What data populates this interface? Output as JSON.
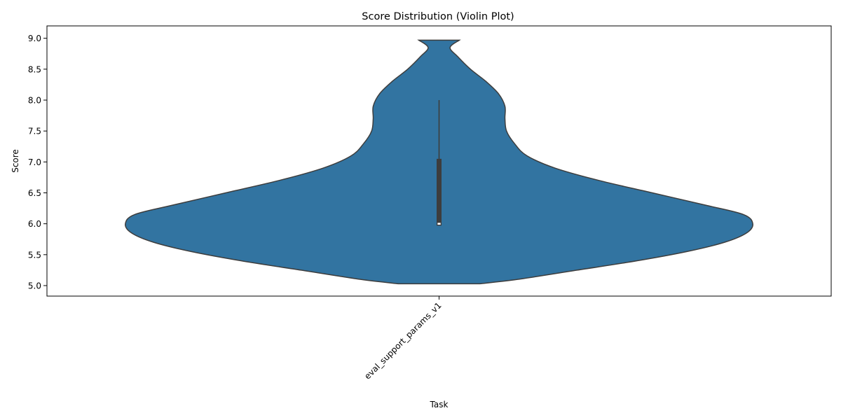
{
  "chart_data": {
    "type": "violin",
    "title": "Score Distribution (Violin Plot)",
    "xlabel": "Task",
    "ylabel": "Score",
    "ylim": [
      4.83,
      9.2
    ],
    "yticks": [
      5.0,
      5.5,
      6.0,
      6.5,
      7.0,
      7.5,
      8.0,
      8.5,
      9.0
    ],
    "ytick_labels": [
      "5.0",
      "5.5",
      "6.0",
      "6.5",
      "7.0",
      "7.5",
      "8.0",
      "8.5",
      "9.0"
    ],
    "categories": [
      "eval_support_params_v1"
    ],
    "violin_color": "#3274a1",
    "edge_color": "#3d3d3d",
    "density_profile": [
      [
        5.03,
        0.13
      ],
      [
        5.1,
        0.25
      ],
      [
        5.25,
        0.44
      ],
      [
        5.4,
        0.63
      ],
      [
        5.55,
        0.79
      ],
      [
        5.7,
        0.91
      ],
      [
        5.85,
        0.98
      ],
      [
        6.0,
        1.0
      ],
      [
        6.15,
        0.97
      ],
      [
        6.3,
        0.85
      ],
      [
        6.5,
        0.68
      ],
      [
        6.7,
        0.51
      ],
      [
        6.9,
        0.37
      ],
      [
        7.1,
        0.28
      ],
      [
        7.3,
        0.24
      ],
      [
        7.5,
        0.215
      ],
      [
        7.7,
        0.21
      ],
      [
        7.9,
        0.21
      ],
      [
        8.1,
        0.19
      ],
      [
        8.3,
        0.15
      ],
      [
        8.5,
        0.1
      ],
      [
        8.7,
        0.06
      ],
      [
        8.85,
        0.035
      ],
      [
        8.97,
        0.065
      ]
    ],
    "box": {
      "q1": 5.97,
      "median": 6.0,
      "q3": 7.05,
      "whisker_low": 5.97,
      "whisker_high": 8.0
    }
  }
}
